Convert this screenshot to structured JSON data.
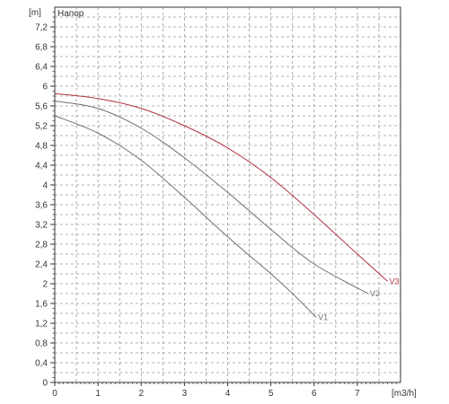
{
  "chart_data": {
    "type": "line",
    "title": "Напор",
    "ylabel": "[m]",
    "xlabel": "[m3/h]",
    "xlim": [
      0,
      8.0
    ],
    "ylim": [
      0,
      7.6
    ],
    "x_ticks": [
      0,
      1,
      2,
      3,
      4,
      5,
      6,
      7
    ],
    "x_tick_labels": [
      "0",
      "1",
      "2",
      "3",
      "4",
      "5",
      "6",
      "7"
    ],
    "y_ticks": [
      0,
      0.4,
      0.8,
      1.2,
      1.6,
      2.0,
      2.4,
      2.8,
      3.2,
      3.6,
      4.0,
      4.4,
      4.8,
      5.2,
      5.6,
      6.0,
      6.4,
      6.8,
      7.2
    ],
    "y_tick_labels": [
      "0",
      "0,4",
      "0,8",
      "1,2",
      "1,6",
      "2",
      "2,4",
      "2,8",
      "3,2",
      "3,6",
      "4",
      "4,4",
      "4,8",
      "5,2",
      "5,6",
      "6",
      "6,4",
      "6,8",
      "7,2"
    ],
    "grid": true,
    "grid_style": "dashed",
    "series": [
      {
        "name": "V1",
        "color": "#707070",
        "points": [
          [
            0,
            5.4
          ],
          [
            1,
            5.05
          ],
          [
            2,
            4.5
          ],
          [
            3,
            3.75
          ],
          [
            4,
            2.95
          ],
          [
            5,
            2.2
          ],
          [
            5.5,
            1.8
          ],
          [
            6.05,
            1.32
          ]
        ]
      },
      {
        "name": "V2",
        "color": "#707070",
        "points": [
          [
            0,
            5.7
          ],
          [
            1,
            5.55
          ],
          [
            2,
            5.15
          ],
          [
            3,
            4.55
          ],
          [
            4,
            3.85
          ],
          [
            5,
            3.1
          ],
          [
            6,
            2.4
          ],
          [
            7.25,
            1.8
          ]
        ]
      },
      {
        "name": "V3",
        "color": "#b03040",
        "points": [
          [
            0,
            5.85
          ],
          [
            1,
            5.75
          ],
          [
            2,
            5.55
          ],
          [
            3,
            5.2
          ],
          [
            4,
            4.75
          ],
          [
            5,
            4.15
          ],
          [
            6,
            3.4
          ],
          [
            7.0,
            2.6
          ],
          [
            7.7,
            2.05
          ]
        ]
      }
    ]
  },
  "colors": {
    "axis": "#333333",
    "grid": "#999999",
    "background": "#ffffff"
  }
}
